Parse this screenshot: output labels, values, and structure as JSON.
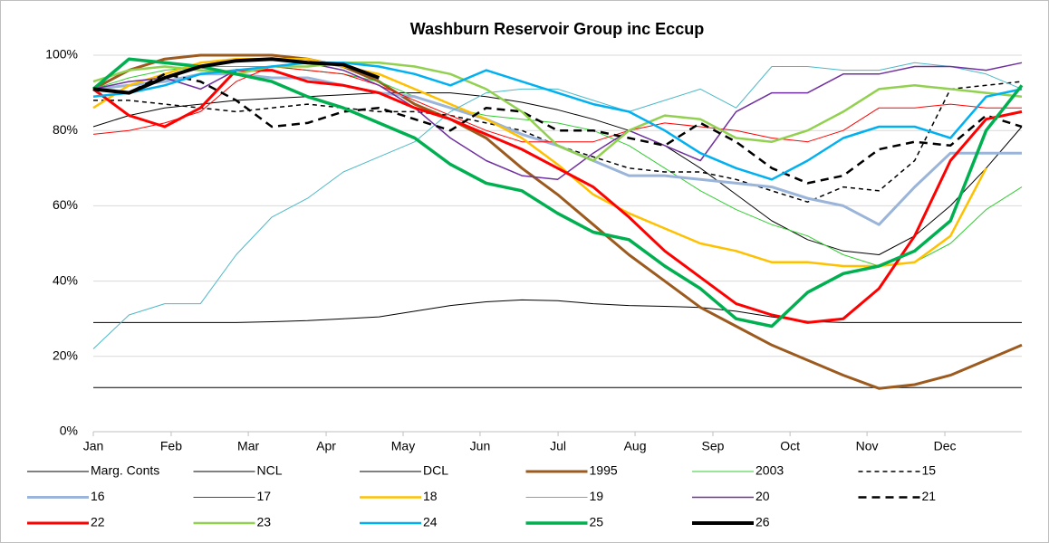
{
  "chart_data": {
    "type": "line",
    "title": "Washburn Reservoir Group inc Eccup",
    "xlim": [
      0,
      52
    ],
    "xticks": [
      {
        "value": 0,
        "label": "Jan"
      },
      {
        "value": 4.36,
        "label": "Feb"
      },
      {
        "value": 8.68,
        "label": "Mar"
      },
      {
        "value": 13.04,
        "label": "Apr"
      },
      {
        "value": 17.35,
        "label": "May"
      },
      {
        "value": 21.66,
        "label": "Jun"
      },
      {
        "value": 26.03,
        "label": "Jul"
      },
      {
        "value": 30.34,
        "label": "Aug"
      },
      {
        "value": 34.7,
        "label": "Sep"
      },
      {
        "value": 39.02,
        "label": "Oct"
      },
      {
        "value": 43.33,
        "label": "Nov"
      },
      {
        "value": 47.69,
        "label": "Dec"
      }
    ],
    "ylim": [
      0,
      100
    ],
    "yticks": [
      {
        "value": 0,
        "label": "0%"
      },
      {
        "value": 20,
        "label": "20%"
      },
      {
        "value": 40,
        "label": "40%"
      },
      {
        "value": 60,
        "label": "60%"
      },
      {
        "value": 80,
        "label": "80%"
      },
      {
        "value": 100,
        "label": "100%"
      }
    ],
    "grid": true,
    "x": [
      0,
      2,
      4,
      6,
      8,
      10,
      12,
      14,
      16,
      18,
      20,
      22,
      24,
      26,
      28,
      30,
      32,
      34,
      36,
      38,
      40,
      42,
      44,
      46,
      48,
      50,
      52
    ],
    "series": [
      {
        "name": "Marg. Conts",
        "color": "#000000",
        "width": 1,
        "dashed": false,
        "values": [
          11.7,
          11.7,
          11.7,
          11.7,
          11.7,
          11.7,
          11.7,
          11.7,
          11.7,
          11.7,
          11.7,
          11.7,
          11.7,
          11.7,
          11.7,
          11.7,
          11.7,
          11.7,
          11.7,
          11.7,
          11.7,
          11.7,
          11.7,
          11.7,
          11.7,
          11.7,
          11.7
        ]
      },
      {
        "name": "NCL",
        "color": "#000000",
        "width": 1,
        "dashed": false,
        "values": [
          29,
          29,
          29,
          29,
          29,
          29.2,
          29.5,
          30,
          30.5,
          32,
          33.5,
          34.5,
          35,
          34.8,
          34,
          33.5,
          33.3,
          33,
          32,
          30.5,
          29.3,
          29,
          29,
          29,
          29,
          29,
          29
        ]
      },
      {
        "name": "DCL",
        "color": "#000000",
        "width": 1,
        "dashed": false,
        "values": [
          81,
          84,
          86,
          87,
          88,
          88.5,
          89,
          89.5,
          90,
          90,
          90,
          89,
          87.5,
          85.5,
          83,
          80,
          76,
          70,
          63,
          56,
          51,
          48,
          47,
          52,
          60,
          70,
          81
        ]
      },
      {
        "name": "1995",
        "color": "#9c5a1e",
        "width": 3,
        "dashed": false,
        "values": [
          91,
          96,
          99,
          100,
          100,
          100,
          99,
          97,
          93,
          87,
          83,
          78,
          70,
          63,
          55,
          47,
          40,
          33,
          28,
          23,
          19,
          15,
          11.5,
          12.5,
          15,
          19,
          23
        ]
      },
      {
        "name": "2003",
        "color": "#33cc33",
        "width": 1,
        "dashed": false,
        "values": [
          91,
          94,
          96,
          97,
          97,
          97,
          96,
          95,
          93,
          89,
          86,
          84,
          83,
          82,
          80,
          76,
          70,
          64,
          59,
          55,
          52,
          47,
          44,
          45,
          50,
          59,
          65
        ]
      },
      {
        "name": "15",
        "color": "#000000",
        "width": 1.5,
        "dashed": true,
        "values": [
          88,
          88,
          87,
          86,
          85,
          86,
          87,
          86,
          85,
          85,
          84,
          82,
          80,
          76,
          73,
          70,
          69,
          69,
          67,
          64,
          61,
          65,
          64,
          72,
          91,
          92,
          93
        ]
      },
      {
        "name": "16",
        "color": "#9ab5d9",
        "width": 3,
        "dashed": false,
        "values": [
          91,
          92,
          93,
          95,
          95,
          94,
          94,
          92,
          90,
          89,
          86,
          83,
          79,
          76,
          72,
          68,
          68,
          67,
          66,
          65,
          62,
          60,
          55,
          65,
          74,
          74,
          74
        ]
      },
      {
        "name": "17",
        "color": "#ff0000",
        "width": 1,
        "dashed": false,
        "values": [
          79,
          80,
          82,
          85,
          93,
          97,
          96,
          95,
          92,
          88,
          84,
          80,
          77,
          77,
          77,
          80,
          82,
          81,
          80,
          78,
          77,
          80,
          86,
          86,
          87,
          86,
          86
        ]
      },
      {
        "name": "18",
        "color": "#ffc000",
        "width": 2.5,
        "dashed": false,
        "values": [
          86,
          92,
          95,
          98,
          99,
          99,
          99,
          97,
          95,
          91,
          87,
          83,
          78,
          71,
          63,
          58,
          54,
          50,
          48,
          45,
          45,
          44,
          44,
          45,
          52,
          70,
          null
        ]
      },
      {
        "name": "19",
        "color": "#4db8c8",
        "width": 1,
        "dashed": false,
        "values": [
          22,
          31,
          34,
          34,
          47,
          57,
          62,
          69,
          73,
          77,
          85,
          90,
          91,
          91,
          88,
          85,
          88,
          91,
          86,
          97,
          97,
          96,
          96,
          98,
          97,
          95,
          91
        ]
      },
      {
        "name": "20",
        "color": "#7030a0",
        "width": 1.5,
        "dashed": false,
        "values": [
          91,
          93,
          94,
          91,
          96,
          97,
          98,
          96,
          92,
          86,
          78,
          72,
          68,
          67,
          74,
          80,
          76,
          72,
          85,
          90,
          90,
          95,
          95,
          97,
          97,
          96,
          98
        ]
      },
      {
        "name": "21",
        "color": "#000000",
        "width": 2.5,
        "dashed": true,
        "values": [
          91,
          90,
          95,
          93,
          88,
          81,
          82,
          85,
          86,
          83,
          80,
          86,
          85,
          80,
          80,
          78,
          76,
          82,
          77,
          70,
          66,
          68,
          75,
          77,
          76,
          84,
          81
        ]
      },
      {
        "name": "22",
        "color": "#ff0000",
        "width": 3,
        "dashed": false,
        "values": [
          91,
          84,
          81,
          86,
          96,
          96,
          93,
          92,
          90,
          86,
          83,
          79,
          75,
          70,
          65,
          57,
          48,
          41,
          34,
          31,
          29,
          30,
          38,
          52,
          72,
          83,
          85
        ]
      },
      {
        "name": "23",
        "color": "#92d050",
        "width": 2.5,
        "dashed": false,
        "values": [
          93,
          96,
          97,
          96,
          95,
          97,
          97,
          98,
          98,
          97,
          95,
          91,
          85,
          76,
          72,
          80,
          84,
          83,
          78,
          77,
          80,
          85,
          91,
          92,
          91,
          90,
          89
        ]
      },
      {
        "name": "24",
        "color": "#00b0f0",
        "width": 2.5,
        "dashed": false,
        "values": [
          89,
          90,
          92,
          95,
          96,
          97,
          98,
          98,
          97,
          95,
          92,
          96,
          93,
          90,
          87,
          85,
          80,
          74,
          70,
          67,
          72,
          78,
          81,
          81,
          78,
          89,
          91
        ]
      },
      {
        "name": "25",
        "color": "#00b050",
        "width": 3.5,
        "dashed": false,
        "values": [
          91,
          99,
          98,
          97,
          95,
          93,
          89,
          86,
          82,
          78,
          71,
          66,
          64,
          58,
          53,
          51,
          44,
          38,
          30,
          28,
          37,
          42,
          44,
          48,
          56,
          80,
          92
        ]
      },
      {
        "name": "26",
        "color": "#000000",
        "width": 4,
        "dashed": false,
        "values": [
          91,
          90,
          94,
          97,
          98.5,
          99,
          98,
          97.5,
          94,
          null,
          null,
          null,
          null,
          null,
          null,
          null,
          null,
          null,
          null,
          null,
          null,
          null,
          null,
          null,
          null,
          null,
          null
        ]
      }
    ]
  }
}
